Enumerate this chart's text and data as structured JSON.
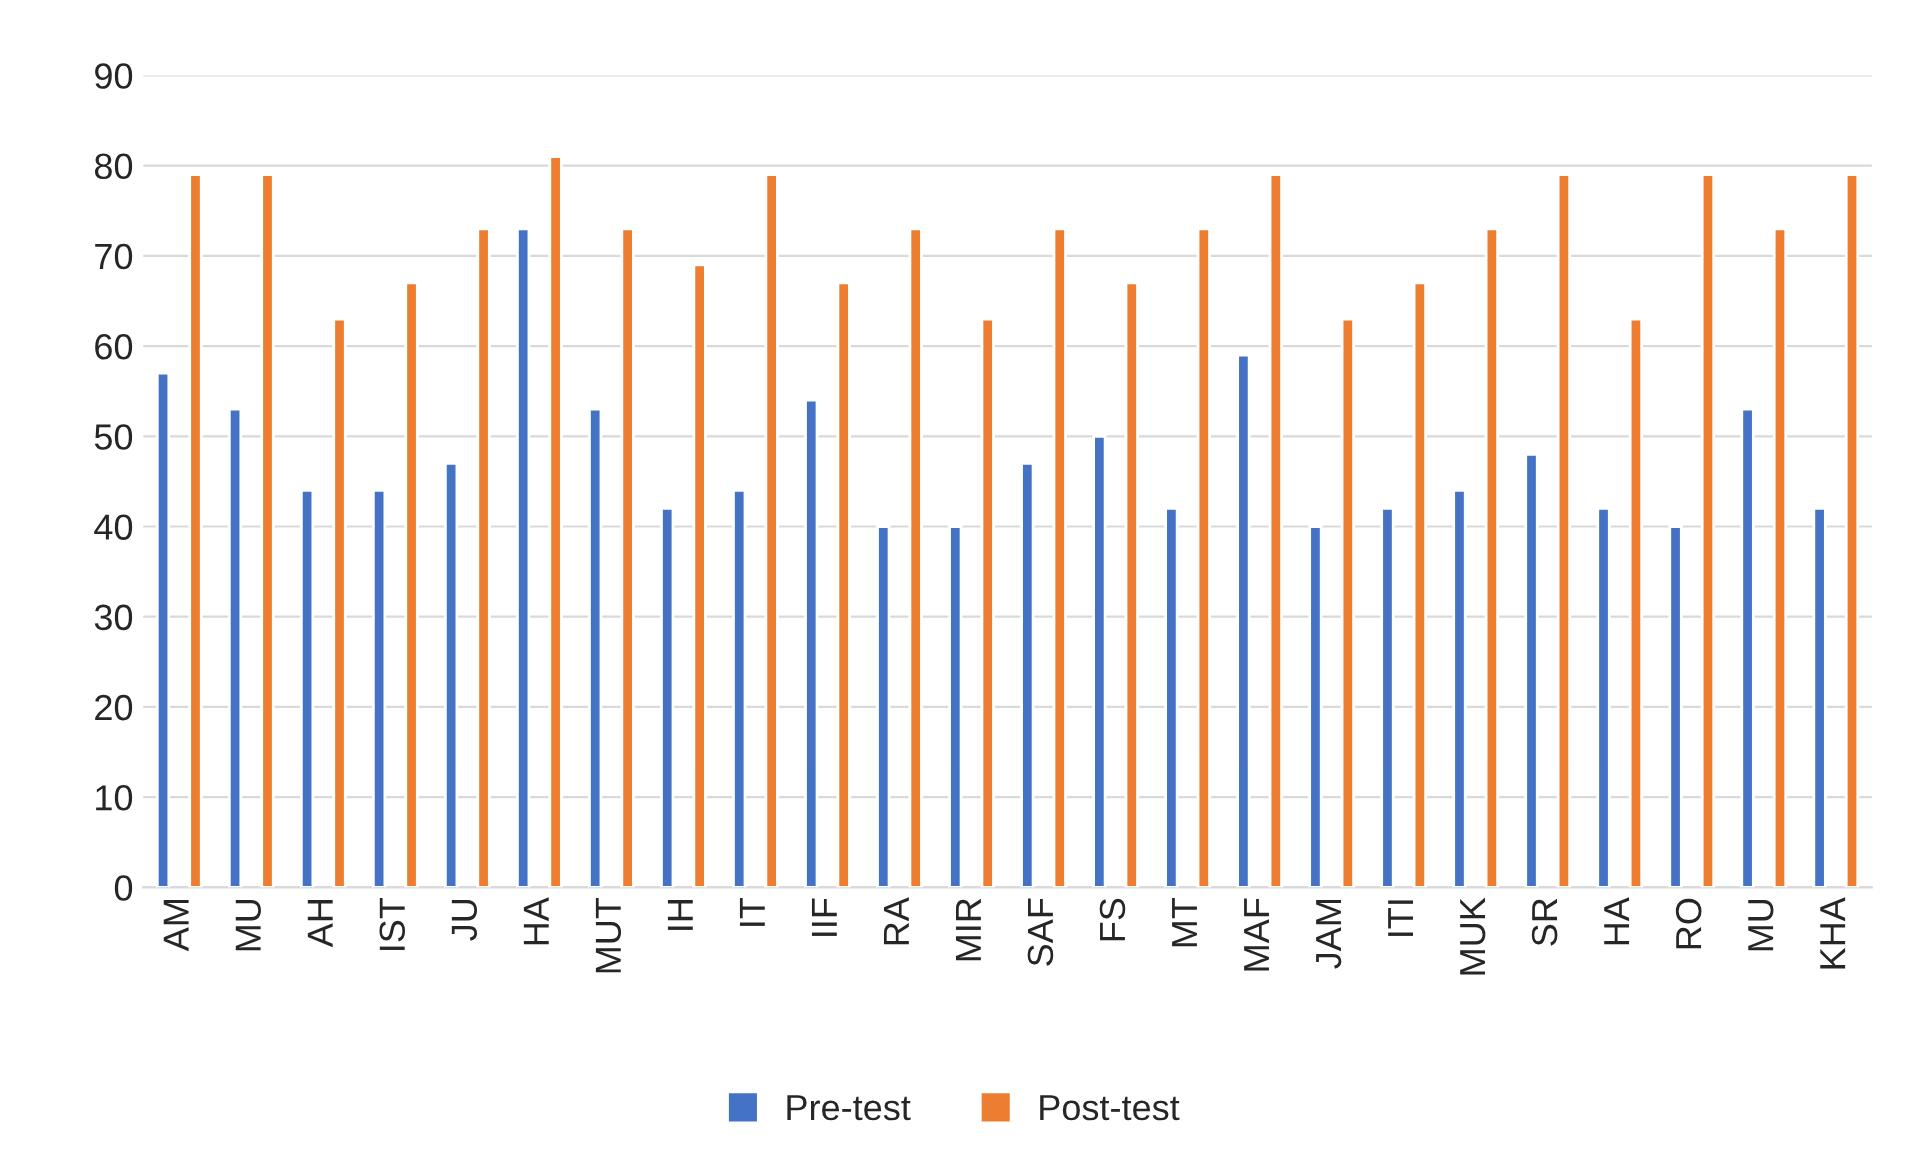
{
  "chart_data": {
    "type": "bar",
    "categories": [
      "AM",
      "MU",
      "AH",
      "IST",
      "JU",
      "HA",
      "MUT",
      "IH",
      "IT",
      "IIF",
      "RA",
      "MIR",
      "SAF",
      "FS",
      "MT",
      "MAF",
      "JAM",
      "ITI",
      "MUK",
      "SR",
      "HA",
      "RO",
      "MU",
      "KHA"
    ],
    "series": [
      {
        "name": "Pre-test",
        "color": "#4472c4",
        "values": [
          57,
          53,
          44,
          44,
          47,
          73,
          53,
          42,
          44,
          54,
          40,
          40,
          47,
          50,
          42,
          59,
          40,
          42,
          44,
          48,
          42,
          40,
          53,
          42
        ]
      },
      {
        "name": "Post-test",
        "color": "#ed7d31",
        "values": [
          79,
          79,
          63,
          67,
          73,
          81,
          73,
          69,
          79,
          67,
          73,
          63,
          73,
          67,
          73,
          79,
          63,
          67,
          73,
          79,
          63,
          79,
          73,
          79
        ]
      }
    ],
    "ylim": [
      0,
      90
    ],
    "yticks": [
      0,
      10,
      20,
      30,
      40,
      50,
      60,
      70,
      80,
      90
    ],
    "grid": "y",
    "legend": "bottom"
  }
}
